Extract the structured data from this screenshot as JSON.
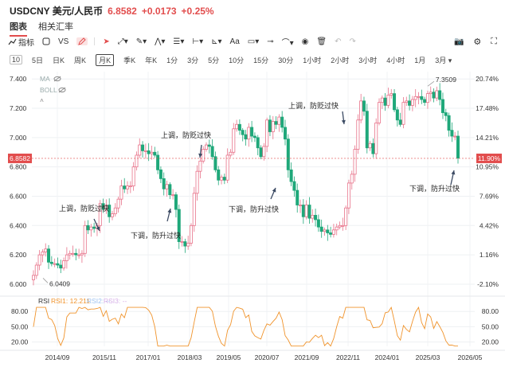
{
  "header": {
    "symbol": "USDCNY 美元/人民币",
    "price": "6.8582",
    "change": "+0.0173",
    "change_pct": "+0.25%"
  },
  "tabs": [
    {
      "label": "图表",
      "active": true
    },
    {
      "label": "相关汇率",
      "active": false
    }
  ],
  "toolbar": {
    "indicator_label": "指标",
    "vs_label": "VS",
    "text_label": "Aa",
    "tools": [
      "indicator-icon",
      "square-icon",
      "vs-compare",
      "pencil-icon",
      "cursor-icon",
      "trendline-icon",
      "pen-icon",
      "pattern-icon",
      "fib-icon",
      "measure-icon",
      "ruler-icon",
      "text-tool",
      "comment-icon",
      "price-label-icon",
      "brush-icon",
      "eye-icon",
      "trash-icon",
      "undo-icon",
      "redo-icon"
    ],
    "right_tools": [
      "camera-icon",
      "settings-icon",
      "fullscreen-icon"
    ]
  },
  "periods": [
    "5日",
    "日K",
    "周K",
    "月K",
    "季K",
    "年K",
    "1分",
    "3分",
    "5分",
    "10分",
    "15分",
    "30分",
    "1小时",
    "2小时",
    "3小时",
    "4小时",
    "1月",
    "3月 ▾"
  ],
  "period_box": "10",
  "active_period": "月K",
  "indicators_panel": {
    "ma": "MA",
    "boll": "BOLL"
  },
  "price_axis": [
    "7.400",
    "7.200",
    "7.000",
    "6.800",
    "6.600",
    "6.400",
    "6.200",
    "6.000"
  ],
  "pct_axis": [
    "20.74%",
    "17.48%",
    "14.21%",
    "10.95%",
    "7.69%",
    "4.42%",
    "1.16%",
    "-2.10%"
  ],
  "current_price_tag": "6.8582",
  "current_pct_tag": "11.90%",
  "max_label": "7.3509",
  "min_label": "6.0409",
  "annotations": [
    {
      "text": "上调，防贬过快"
    },
    {
      "text": "下调，防升过快"
    },
    {
      "text": "上调，防贬过快"
    },
    {
      "text": "下调，防升过快"
    },
    {
      "text": "上调，防贬过快"
    },
    {
      "text": "下调，防升过快"
    }
  ],
  "rsi": {
    "title": "RSI",
    "rsi1": "RSI1: 12.211",
    "rsi2": "RSI2: --",
    "rsi3": "RSI3: --",
    "axis": [
      "80.00",
      "50.00",
      "20.00"
    ]
  },
  "x_axis": [
    "2014/09",
    "2015/11",
    "2017/01",
    "2018/03",
    "2019/05",
    "2020/07",
    "2021/09",
    "2022/11",
    "2024/01",
    "2025/03",
    "2026/05"
  ],
  "colors": {
    "up": "#e8738a",
    "down": "#1fa87a",
    "accent": "#e24d4d",
    "rsi_line": "#f0932b",
    "price_line": "#e24d4d"
  },
  "chart_data": {
    "type": "candlestick",
    "title": "USDCNY 美元/人民币",
    "interval": "monthly",
    "x_start": "2014-01",
    "y_range": [
      5.94,
      7.45
    ],
    "series_close": [
      6.06,
      6.13,
      6.2,
      6.22,
      6.24,
      6.15,
      6.14,
      6.14,
      6.13,
      6.11,
      6.16,
      6.2,
      6.21,
      6.21,
      6.2,
      6.2,
      6.21,
      6.4,
      6.37,
      6.39,
      6.38,
      6.4,
      6.55,
      6.51,
      6.54,
      6.46,
      6.48,
      6.52,
      6.58,
      6.67,
      6.65,
      6.67,
      6.67,
      6.8,
      6.88,
      6.95,
      6.91,
      6.91,
      6.89,
      6.9,
      6.88,
      6.78,
      6.72,
      6.65,
      6.68,
      6.61,
      6.61,
      6.51,
      6.29,
      6.29,
      6.26,
      6.28,
      6.4,
      6.62,
      6.77,
      6.84,
      6.92,
      6.95,
      6.94,
      6.87,
      6.78,
      6.71,
      6.73,
      6.71,
      6.88,
      6.9,
      7.06,
      7.09,
      7.05,
      7.02,
      6.99,
      7.07,
      7.01,
      7.0,
      6.93,
      6.87,
      6.94,
      7.12,
      7.04,
      7.11,
      7.09,
      7.14,
      7.07,
      6.99,
      6.78,
      6.7,
      6.64,
      6.54,
      6.54,
      6.46,
      6.54,
      6.45,
      6.47,
      6.44,
      6.39,
      6.36,
      6.37,
      6.35,
      6.34,
      6.37,
      6.39,
      6.4,
      6.4,
      6.52,
      6.69,
      6.75,
      6.92,
      7.12,
      7.25,
      7.18,
      6.93,
      6.96,
      6.89,
      7.1,
      7.24,
      7.27,
      7.22,
      7.29,
      7.3,
      7.19,
      7.12,
      7.09,
      7.24,
      7.25,
      7.22,
      7.26,
      7.28,
      7.28,
      7.26,
      7.24,
      7.3,
      7.31,
      7.27,
      7.32,
      7.26,
      7.17,
      7.15,
      7.05,
      7.01,
      7.01,
      6.86
    ],
    "current": 6.8582,
    "high_label": 7.3509,
    "low_label": 6.0409
  }
}
